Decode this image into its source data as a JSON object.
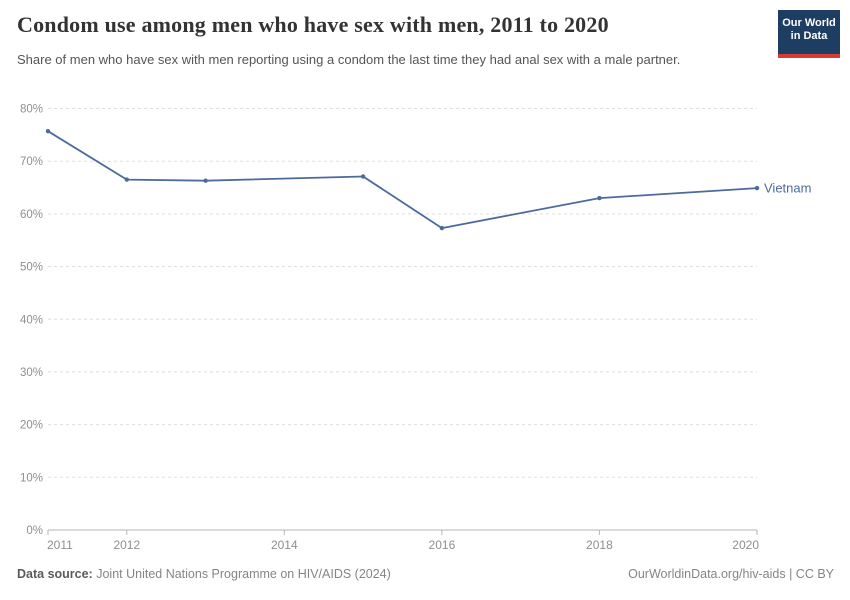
{
  "header": {
    "logo": {
      "line1": "Our World",
      "line2": "in Data"
    }
  },
  "chart_data": {
    "type": "line",
    "title": "Condom use among men who have sex with men, 2011 to 2020",
    "subtitle": "Share of men who have sex with men reporting using a condom the last time they had anal sex with a male partner.",
    "series": [
      {
        "name": "Vietnam",
        "color": "#4c6a9c",
        "x": [
          2011,
          2012,
          2013,
          2015,
          2016,
          2018,
          2020
        ],
        "values": [
          75.7,
          66.5,
          66.3,
          67.1,
          57.3,
          63.0,
          64.9
        ]
      }
    ],
    "x_axis": {
      "range": [
        2011,
        2020
      ],
      "ticks": [
        2011,
        2012,
        2014,
        2016,
        2018,
        2020
      ],
      "tick_labels": [
        "2011",
        "2012",
        "2014",
        "2016",
        "2018",
        "2020"
      ]
    },
    "y_axis": {
      "range": [
        0,
        80
      ],
      "ticks": [
        0,
        10,
        20,
        30,
        40,
        50,
        60,
        70,
        80
      ],
      "suffix": "%",
      "grid": "dashed"
    },
    "legend_position": "end-of-line-label"
  },
  "colors": {
    "line": "#4c6a9c",
    "grid": "#dedede",
    "axis": "#b5b5b5",
    "tick_label": "#8f8f8f",
    "title": "#333333",
    "subtitle": "#555555",
    "logo_bg": "#1d3d63",
    "logo_accent": "#d63c32"
  },
  "footer": {
    "source_label": "Data source:",
    "source_text": "Joint United Nations Programme on HIV/AIDS (2024)",
    "attribution": "OurWorldinData.org/hiv-aids | CC BY"
  }
}
